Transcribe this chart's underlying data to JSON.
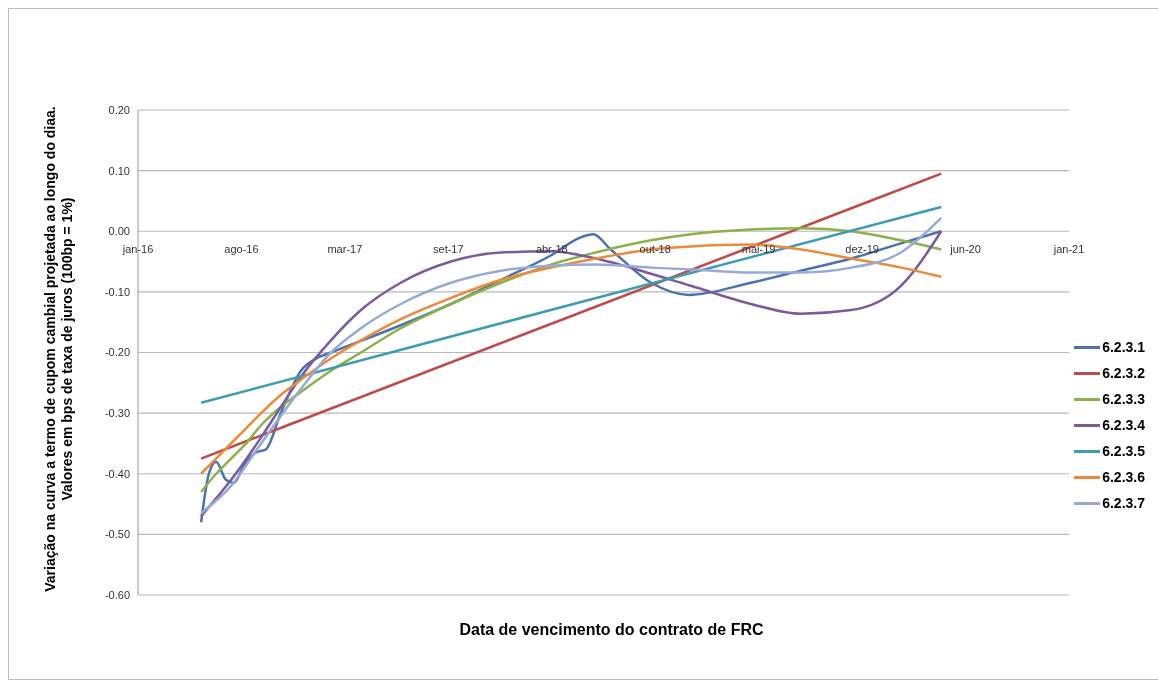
{
  "chart_data": {
    "type": "line",
    "xlabel": "Data de vencimento do contrato de FRC",
    "ylabel": "Variação na curva a termo de cupom cambial projetada ao longo do diaa.\nValores em bps de taxa de juros (100bp = 1%)",
    "xlim": [
      "2016-01-31",
      "2021-01-04"
    ],
    "xticks": [
      {
        "value": "2016-01-31",
        "label": "jan-16"
      },
      {
        "value": "2016-08-18",
        "label": "ago-16"
      },
      {
        "value": "2017-03-06",
        "label": "mar-17"
      },
      {
        "value": "2017-09-22",
        "label": "set-17"
      },
      {
        "value": "2018-04-10",
        "label": "abr-18"
      },
      {
        "value": "2018-10-27",
        "label": "out-18"
      },
      {
        "value": "2019-05-15",
        "label": "mai-19"
      },
      {
        "value": "2019-12-01",
        "label": "dez-19"
      },
      {
        "value": "2020-06-18",
        "label": "jun-20"
      },
      {
        "value": "2021-01-04",
        "label": "jan-21"
      }
    ],
    "ylim": [
      -0.6,
      0.2
    ],
    "yticks": [
      {
        "value": -0.6,
        "label": "-0.60"
      },
      {
        "value": -0.5,
        "label": "-0.50"
      },
      {
        "value": -0.4,
        "label": "-0.40"
      },
      {
        "value": -0.3,
        "label": "-0.30"
      },
      {
        "value": -0.2,
        "label": "-0.20"
      },
      {
        "value": -0.1,
        "label": "-0.10"
      },
      {
        "value": 0,
        "label": "0.00"
      },
      {
        "value": 0.1,
        "label": "0.10"
      },
      {
        "value": 0.2,
        "label": "0.20"
      }
    ],
    "grid": "y",
    "legend": "right",
    "marker": "none",
    "line_style": "solid",
    "series": [
      {
        "name": "6.2.3.1",
        "color": "#4a72b0",
        "x": [
          "2016-06-01",
          "2016-06-16",
          "2016-06-30",
          "2016-07-19",
          "2016-08-02",
          "2016-08-27",
          "2016-09-15",
          "2016-10-04",
          "2016-11-02",
          "2016-12-11",
          "2017-01-09",
          "2017-02-07",
          "2017-06-22",
          "2017-09-27",
          "2018-01-02",
          "2018-04-08",
          "2018-06-05",
          "2018-06-29",
          "2018-08-02",
          "2018-10-19",
          "2018-12-31",
          "2019-04-30",
          "2019-08-05",
          "2019-11-10",
          "2020-02-14",
          "2020-05-02"
        ],
        "values": [
          -0.48,
          -0.4,
          -0.38,
          -0.41,
          -0.415,
          -0.38,
          -0.365,
          -0.36,
          -0.3,
          -0.23,
          -0.21,
          -0.2,
          -0.155,
          -0.12,
          -0.08,
          -0.04,
          -0.01,
          -0.005,
          -0.03,
          -0.085,
          -0.105,
          -0.085,
          -0.065,
          -0.045,
          -0.02,
          0.0
        ]
      },
      {
        "name": "6.2.3.2",
        "color": "#be4b48",
        "x": [
          "2016-06-01",
          "2018-04-08",
          "2020-05-02"
        ],
        "values": [
          -0.375,
          -0.153,
          0.095
        ]
      },
      {
        "name": "6.2.3.3",
        "color": "#8cb04a",
        "x": [
          "2016-06-01",
          "2016-06-30",
          "2016-07-29",
          "2016-08-27",
          "2016-09-25",
          "2016-11-02",
          "2016-12-11",
          "2017-02-07",
          "2017-04-06",
          "2017-06-22",
          "2017-09-27",
          "2018-01-02",
          "2018-04-08",
          "2018-07-04",
          "2018-10-19",
          "2019-01-04",
          "2019-04-30",
          "2019-08-05",
          "2019-11-10",
          "2020-02-14",
          "2020-05-02"
        ],
        "values": [
          -0.43,
          -0.4,
          -0.375,
          -0.35,
          -0.32,
          -0.29,
          -0.265,
          -0.23,
          -0.2,
          -0.16,
          -0.12,
          -0.085,
          -0.055,
          -0.035,
          -0.015,
          -0.005,
          0.003,
          0.005,
          0.0,
          -0.015,
          -0.03
        ]
      },
      {
        "name": "6.2.3.4",
        "color": "#7b5a9e",
        "x": [
          "2016-06-01",
          "2016-07-29",
          "2016-09-25",
          "2016-11-02",
          "2016-12-11",
          "2017-02-07",
          "2017-04-06",
          "2017-06-22",
          "2017-09-27",
          "2018-01-02",
          "2018-04-08",
          "2018-07-04",
          "2018-10-19",
          "2019-01-04",
          "2019-04-30",
          "2019-08-05",
          "2019-11-10",
          "2020-02-14",
          "2020-05-02"
        ],
        "values": [
          -0.47,
          -0.41,
          -0.34,
          -0.29,
          -0.24,
          -0.18,
          -0.13,
          -0.085,
          -0.05,
          -0.035,
          -0.033,
          -0.045,
          -0.07,
          -0.09,
          -0.12,
          -0.136,
          -0.13,
          -0.09,
          0.0
        ]
      },
      {
        "name": "6.2.3.5",
        "color": "#3c9cb3",
        "x": [
          "2016-06-01",
          "2018-04-08",
          "2020-05-02"
        ],
        "values": [
          -0.283,
          -0.13,
          0.04
        ]
      },
      {
        "name": "6.2.3.6",
        "color": "#ed8a3a",
        "x": [
          "2016-06-01",
          "2016-06-30",
          "2016-07-29",
          "2016-08-27",
          "2016-09-25",
          "2016-11-02",
          "2016-12-11",
          "2017-02-07",
          "2017-04-06",
          "2017-06-22",
          "2017-09-27",
          "2018-01-02",
          "2018-04-08",
          "2018-07-04",
          "2018-10-19",
          "2019-01-04",
          "2019-04-30",
          "2019-08-05",
          "2019-11-10",
          "2020-02-14",
          "2020-05-02"
        ],
        "values": [
          -0.4,
          -0.375,
          -0.35,
          -0.325,
          -0.3,
          -0.27,
          -0.245,
          -0.21,
          -0.18,
          -0.145,
          -0.11,
          -0.08,
          -0.06,
          -0.045,
          -0.03,
          -0.025,
          -0.022,
          -0.03,
          -0.045,
          -0.06,
          -0.075
        ]
      },
      {
        "name": "6.2.3.7",
        "color": "#95abd6",
        "x": [
          "2016-06-01",
          "2016-07-29",
          "2016-09-25",
          "2016-12-11",
          "2017-02-07",
          "2017-04-06",
          "2017-06-22",
          "2017-09-27",
          "2018-01-02",
          "2018-04-08",
          "2018-07-04",
          "2018-10-19",
          "2019-01-04",
          "2019-04-30",
          "2019-08-05",
          "2019-11-10",
          "2020-02-14",
          "2020-05-02"
        ],
        "values": [
          -0.465,
          -0.42,
          -0.35,
          -0.26,
          -0.2,
          -0.16,
          -0.12,
          -0.085,
          -0.065,
          -0.057,
          -0.055,
          -0.06,
          -0.063,
          -0.068,
          -0.068,
          -0.06,
          -0.035,
          0.022
        ]
      }
    ]
  }
}
